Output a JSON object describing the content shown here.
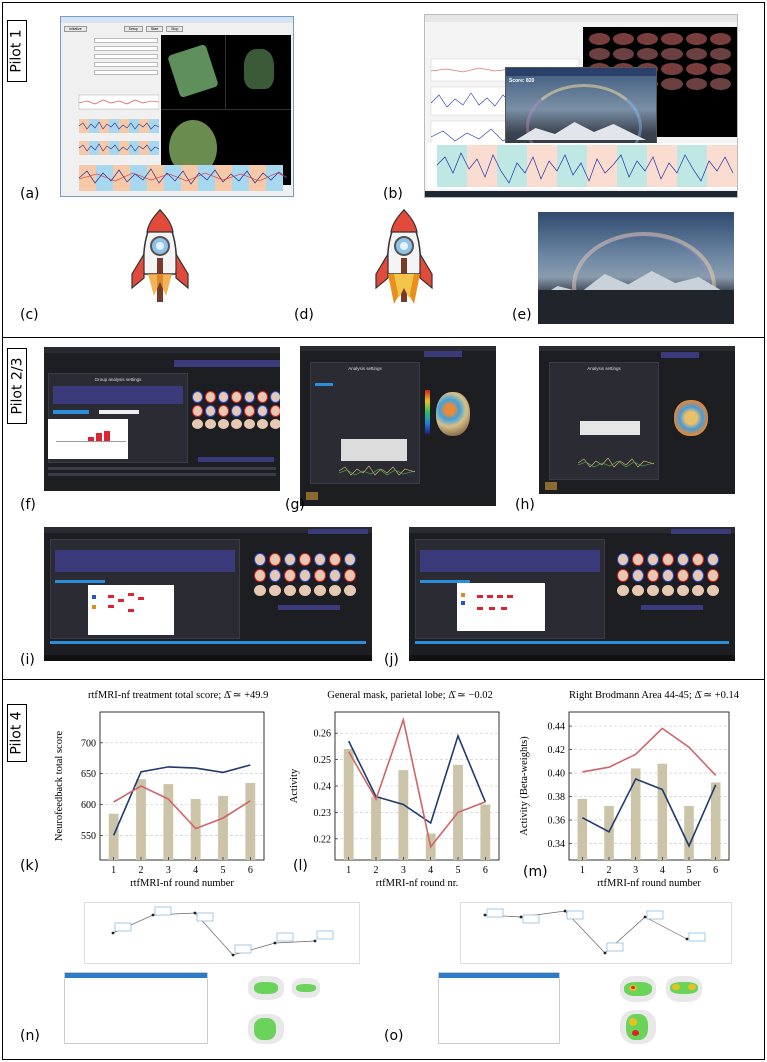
{
  "pilots": {
    "pilot1": "Pilot 1",
    "pilot23": "Pilot 2/3",
    "pilot4": "Pilot 4"
  },
  "panels": {
    "a": "(a)",
    "b": "(b)",
    "c": "(c)",
    "d": "(d)",
    "e": "(e)",
    "f": "(f)",
    "g": "(g)",
    "h": "(h)",
    "i": "(i)",
    "j": "(j)",
    "k": "(k)",
    "l": "(l)",
    "m": "(m)",
    "n": "(n)",
    "o": "(o)"
  },
  "screens": {
    "a_buttons": [
      "Initialize",
      "Setup",
      "Start",
      "Stop"
    ],
    "b_overlay_text": "Score: 820",
    "f_title": "Group analysis settings",
    "g_title": "Analysis settings",
    "h_title": "Analysis settings"
  },
  "colors": {
    "nf_blue": "#1f3a6e",
    "nf_red": "#d0646a",
    "bar": "#cbc4a8",
    "dark_bg": "#1d1e22",
    "accent_purple": "#3b3a7a"
  },
  "chart_data": [
    {
      "type": "bar",
      "title": "rtfMRI-nf treatment total score; ",
      "title_stat": "Δ̄ ≃ +49.9",
      "xlabel": "rtfMRI-nf round number",
      "ylabel": "Neurofeedback total score",
      "categories": [
        "1",
        "2",
        "3",
        "4",
        "5",
        "6"
      ],
      "yticks": [
        "550",
        "600",
        "650",
        "700"
      ],
      "ylim": [
        510,
        750
      ],
      "grid": true,
      "series": [
        {
          "kind": "bar",
          "values": [
            585,
            641,
            633,
            609,
            614,
            635
          ]
        },
        {
          "kind": "line",
          "color": "#1f3a6e",
          "values": [
            550,
            653,
            661,
            659,
            652,
            664
          ]
        },
        {
          "kind": "line",
          "color": "#d0646a",
          "values": [
            604,
            630,
            609,
            561,
            578,
            606
          ]
        }
      ]
    },
    {
      "type": "bar",
      "title": "General mask, parietal lobe; ",
      "title_stat": "Δ̄ ≃ −0.02",
      "xlabel": "rtfMRI-nf round nr.",
      "ylabel": "Activity",
      "categories": [
        "1",
        "2",
        "3",
        "4",
        "5",
        "6"
      ],
      "yticks": [
        "0.22",
        "0.23",
        "0.24",
        "0.25",
        "0.26"
      ],
      "ylim": [
        0.212,
        0.268
      ],
      "grid": true,
      "series": [
        {
          "kind": "bar",
          "values": [
            0.254,
            0.236,
            0.246,
            0.222,
            0.248,
            0.233
          ]
        },
        {
          "kind": "line",
          "color": "#1f3a6e",
          "values": [
            0.257,
            0.236,
            0.233,
            0.226,
            0.259,
            0.234
          ]
        },
        {
          "kind": "line",
          "color": "#d0646a",
          "values": [
            0.253,
            0.235,
            0.265,
            0.217,
            0.23,
            0.234
          ]
        }
      ]
    },
    {
      "type": "bar",
      "title": "Right Brodmann Area 44-45; ",
      "title_stat": "Δ̄ ≃ +0.14",
      "xlabel": "rtfMRI-nf round number",
      "ylabel": "Activity (Beta-weights)",
      "categories": [
        "1",
        "2",
        "3",
        "4",
        "5",
        "6"
      ],
      "yticks": [
        "0.34",
        "0.36",
        "0.38",
        "0.40",
        "0.42",
        "0.44"
      ],
      "ylim": [
        0.326,
        0.452
      ],
      "grid": true,
      "series": [
        {
          "kind": "bar",
          "values": [
            0.378,
            0.372,
            0.404,
            0.408,
            0.372,
            0.392
          ]
        },
        {
          "kind": "line",
          "color": "#1f3a6e",
          "values": [
            0.362,
            0.35,
            0.395,
            0.386,
            0.338,
            0.39
          ]
        },
        {
          "kind": "line",
          "color": "#d0646a",
          "values": [
            0.401,
            0.405,
            0.416,
            0.438,
            0.422,
            0.398
          ]
        }
      ]
    }
  ]
}
